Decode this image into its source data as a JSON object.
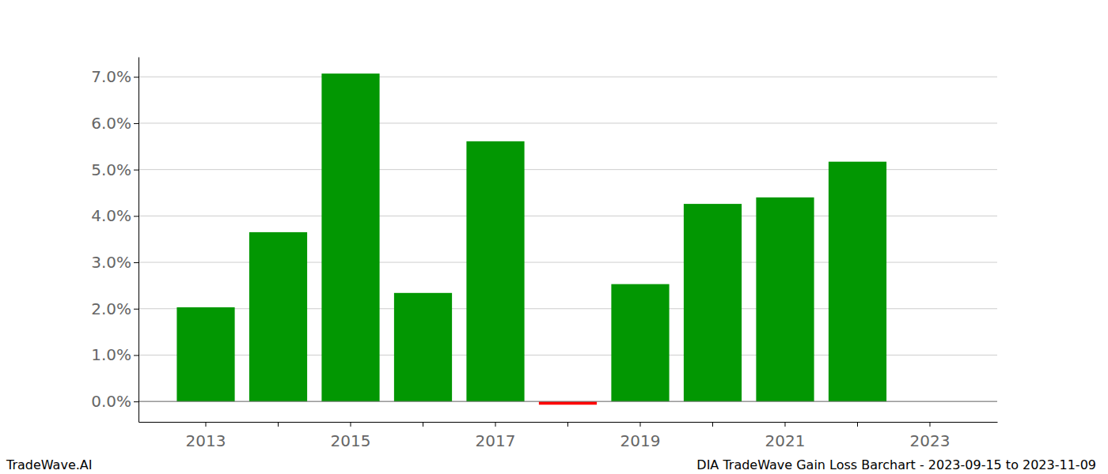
{
  "chart_data": {
    "type": "bar",
    "title": "DIA TradeWave Gain Loss Barchart - 2023-09-15 to 2023-11-09",
    "annotations": [
      "TradeWave.AI"
    ],
    "categories": [
      "2013",
      null,
      "2015",
      null,
      "2017",
      null,
      "2019",
      null,
      "2021",
      null,
      "2023"
    ],
    "values": [
      2.03,
      3.65,
      7.07,
      2.34,
      5.61,
      -0.07,
      2.53,
      4.26,
      4.4,
      5.17,
      null
    ],
    "colors": [
      "#029702",
      "#029702",
      "#029702",
      "#029702",
      "#029702",
      "#ff0000",
      "#029702",
      "#029702",
      "#029702",
      "#029702",
      "#029702"
    ],
    "ylim": [
      -0.44,
      7.43
    ],
    "yticks": [
      {
        "value": 0,
        "label": "0.0%"
      },
      {
        "value": 1,
        "label": "1.0%"
      },
      {
        "value": 2,
        "label": "2.0%"
      },
      {
        "value": 3,
        "label": "3.0%"
      },
      {
        "value": 4,
        "label": "4.0%"
      },
      {
        "value": 5,
        "label": "5.0%"
      },
      {
        "value": 6,
        "label": "6.0%"
      },
      {
        "value": 7,
        "label": "7.0%"
      }
    ],
    "grid": true
  }
}
